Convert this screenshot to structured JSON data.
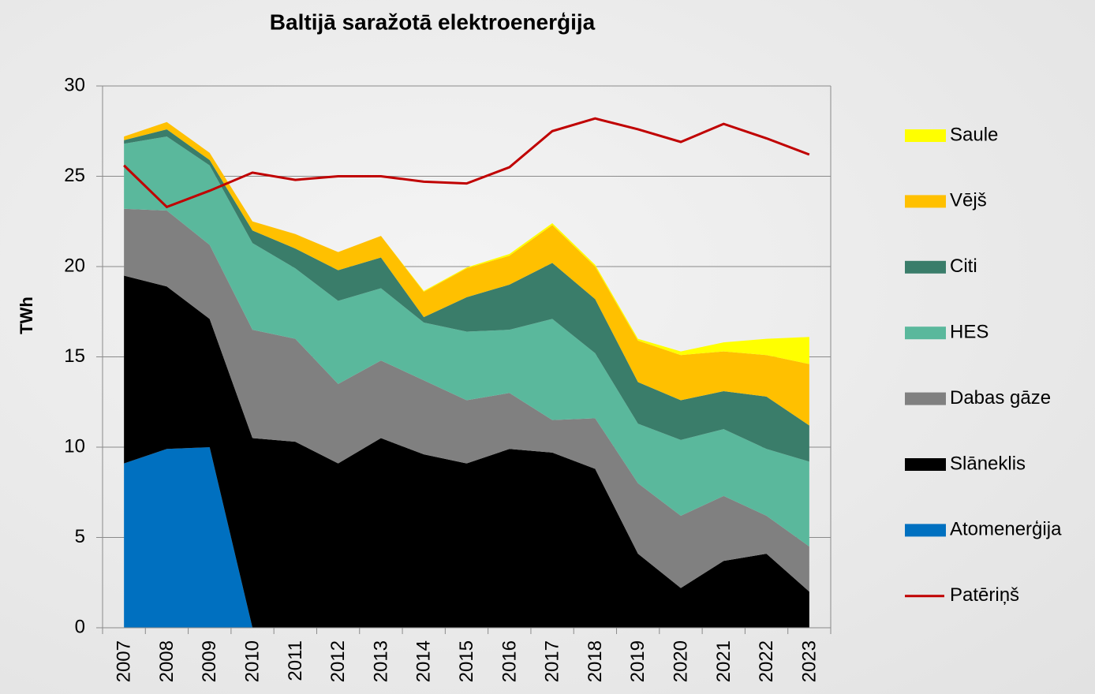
{
  "chart_data": {
    "type": "stacked-area",
    "title": "Baltijā saražotā elektroenerģija",
    "ylabel": "TWh",
    "categories": [
      "2007",
      "2008",
      "2009",
      "2010",
      "2011",
      "2012",
      "2013",
      "2014",
      "2015",
      "2016",
      "2017",
      "2018",
      "2019",
      "2020",
      "2021",
      "2022",
      "2023"
    ],
    "ylim": [
      0,
      30
    ],
    "yticks": [
      0,
      5,
      10,
      15,
      20,
      25,
      30
    ],
    "grid": true,
    "series": [
      {
        "name": "Atomenerģija",
        "color": "#0070c0",
        "values": [
          9.1,
          9.9,
          10.0,
          0,
          0,
          0,
          0,
          0,
          0,
          0,
          0,
          0,
          0,
          0,
          0,
          0,
          0
        ]
      },
      {
        "name": "Slāneklis",
        "color": "#000000",
        "values": [
          10.4,
          9.0,
          7.1,
          10.5,
          10.3,
          9.1,
          10.5,
          9.6,
          9.1,
          9.9,
          9.7,
          8.8,
          4.1,
          2.2,
          3.7,
          4.1,
          2.0
        ]
      },
      {
        "name": "Dabas gāze",
        "color": "#808080",
        "values": [
          3.7,
          4.2,
          4.1,
          6.0,
          5.7,
          4.4,
          4.3,
          4.1,
          3.5,
          3.1,
          1.8,
          2.8,
          3.9,
          4.0,
          3.6,
          2.1,
          2.5
        ]
      },
      {
        "name": "HES",
        "color": "#5ab89c",
        "values": [
          3.6,
          4.1,
          4.4,
          4.8,
          3.9,
          4.6,
          4.0,
          3.2,
          3.8,
          3.5,
          5.6,
          3.6,
          3.3,
          4.2,
          3.7,
          3.7,
          4.7
        ]
      },
      {
        "name": "Citi",
        "color": "#3a7d6a",
        "values": [
          0.2,
          0.4,
          0.3,
          0.7,
          1.1,
          1.7,
          1.7,
          0.3,
          1.9,
          2.5,
          3.1,
          3.0,
          2.3,
          2.2,
          2.1,
          2.9,
          2.0
        ]
      },
      {
        "name": "Vējš",
        "color": "#ffc000",
        "values": [
          0.2,
          0.4,
          0.4,
          0.5,
          0.8,
          1.0,
          1.2,
          1.4,
          1.6,
          1.6,
          2.1,
          1.8,
          2.3,
          2.5,
          2.2,
          2.3,
          3.4
        ]
      },
      {
        "name": "Saule",
        "color": "#ffff00",
        "values": [
          0,
          0,
          0,
          0,
          0,
          0,
          0,
          0.05,
          0.05,
          0.1,
          0.1,
          0.1,
          0.1,
          0.2,
          0.5,
          0.9,
          1.5
        ]
      },
      {
        "name": "Patēriņš",
        "color": "#c00000",
        "type": "line",
        "values": [
          25.6,
          23.3,
          24.2,
          25.2,
          24.8,
          25.0,
          25.0,
          24.7,
          24.6,
          25.5,
          27.5,
          28.2,
          27.6,
          26.9,
          27.9,
          27.1,
          26.2
        ]
      }
    ]
  }
}
